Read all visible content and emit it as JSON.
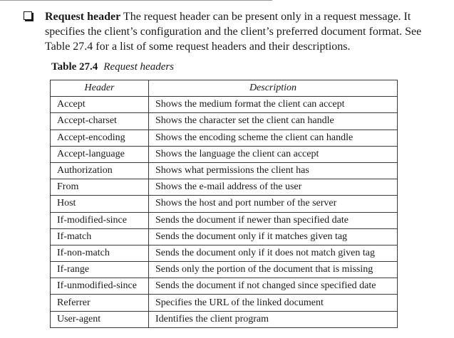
{
  "paragraph": {
    "lead": "Request header",
    "line1": " The request header can be present only in a request message. It",
    "line2": "specifies the client’s configuration and the client’s preferred document format. See",
    "line3": "Table 27.4 for a list of some request headers and their descriptions."
  },
  "table_caption": {
    "number": "Table 27.4",
    "title": "Request headers"
  },
  "table": {
    "columns": [
      "Header",
      "Description"
    ],
    "rows": [
      [
        "Accept",
        "Shows the medium format the client can accept"
      ],
      [
        "Accept-charset",
        "Shows the character set the client can handle"
      ],
      [
        "Accept-encoding",
        "Shows the encoding scheme the client can handle"
      ],
      [
        "Accept-language",
        "Shows the language the client can accept"
      ],
      [
        "Authorization",
        "Shows what permissions the client has"
      ],
      [
        "From",
        "Shows the e-mail address of the user"
      ],
      [
        "Host",
        "Shows the host and port number of the server"
      ],
      [
        "If-modified-since",
        "Sends the document if newer than specified date"
      ],
      [
        "If-match",
        "Sends the document only if it matches given tag"
      ],
      [
        "If-non-match",
        "Sends the document only if it does not match given tag"
      ],
      [
        "If-range",
        "Sends only the portion of the document that is missing"
      ],
      [
        "If-unmodified-since",
        "Sends the document if not changed since specified date"
      ],
      [
        "Referrer",
        "Specifies the URL of the linked document"
      ],
      [
        "User-agent",
        "Identifies the client program"
      ]
    ]
  }
}
